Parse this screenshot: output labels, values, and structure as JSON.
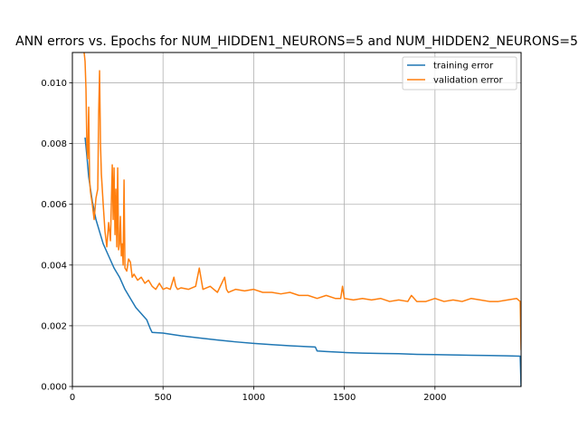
{
  "chart_data": {
    "type": "line",
    "title": "ANN errors vs. Epochs for NUM_HIDDEN1_NEURONS=5 and NUM_HIDDEN2_NEURONS=5",
    "xlabel": "",
    "ylabel": "",
    "xlim": [
      0,
      2475
    ],
    "ylim": [
      0,
      0.011
    ],
    "x_ticks": [
      0,
      500,
      1000,
      1500,
      2000
    ],
    "x_tick_labels": [
      "0",
      "500",
      "1000",
      "1500",
      "2000"
    ],
    "y_ticks": [
      0,
      0.002,
      0.004,
      0.006,
      0.008,
      0.01
    ],
    "y_tick_labels": [
      "0.000",
      "0.002",
      "0.004",
      "0.006",
      "0.008",
      "0.010"
    ],
    "grid": true,
    "legend_position": "top-right",
    "series": [
      {
        "name": "training error",
        "color": "#1f77b4",
        "x": [
          70,
          80,
          90,
          100,
          110,
          120,
          130,
          150,
          170,
          200,
          230,
          260,
          290,
          320,
          350,
          380,
          410,
          430,
          440,
          500,
          600,
          700,
          800,
          900,
          1000,
          1100,
          1200,
          1300,
          1340,
          1350,
          1400,
          1500,
          1600,
          1700,
          1800,
          1900,
          2000,
          2100,
          2200,
          2300,
          2400,
          2470,
          2475
        ],
        "y": [
          0.0082,
          0.0076,
          0.0069,
          0.0065,
          0.0061,
          0.0058,
          0.0055,
          0.0051,
          0.0047,
          0.0043,
          0.0039,
          0.0036,
          0.0032,
          0.0029,
          0.0026,
          0.0024,
          0.0022,
          0.0019,
          0.00178,
          0.00176,
          0.00167,
          0.0016,
          0.00153,
          0.00147,
          0.00142,
          0.00138,
          0.00134,
          0.00131,
          0.0013,
          0.00117,
          0.00115,
          0.00112,
          0.0011,
          0.00109,
          0.00108,
          0.00106,
          0.00105,
          0.00104,
          0.00103,
          0.00102,
          0.00101,
          0.001,
          0.0
        ]
      },
      {
        "name": "validation error",
        "color": "#ff7f0e",
        "x": [
          60,
          65,
          70,
          75,
          80,
          85,
          90,
          95,
          100,
          110,
          120,
          130,
          140,
          145,
          150,
          155,
          160,
          170,
          180,
          190,
          200,
          210,
          220,
          225,
          230,
          235,
          240,
          245,
          250,
          255,
          260,
          265,
          270,
          275,
          280,
          285,
          290,
          300,
          310,
          320,
          330,
          340,
          360,
          380,
          400,
          420,
          440,
          460,
          480,
          500,
          520,
          540,
          560,
          570,
          580,
          600,
          640,
          680,
          700,
          720,
          760,
          800,
          840,
          850,
          860,
          900,
          950,
          1000,
          1050,
          1100,
          1150,
          1200,
          1250,
          1300,
          1350,
          1400,
          1450,
          1480,
          1490,
          1500,
          1550,
          1600,
          1650,
          1700,
          1750,
          1800,
          1850,
          1870,
          1900,
          1950,
          2000,
          2050,
          2100,
          2150,
          2200,
          2250,
          2300,
          2350,
          2400,
          2450,
          2470,
          2475
        ],
        "y": [
          0.011,
          0.011,
          0.0107,
          0.0098,
          0.0079,
          0.0075,
          0.0092,
          0.0068,
          0.0064,
          0.006,
          0.0055,
          0.0062,
          0.0065,
          0.009,
          0.0104,
          0.008,
          0.007,
          0.006,
          0.0051,
          0.0046,
          0.0054,
          0.0048,
          0.0073,
          0.0055,
          0.0072,
          0.005,
          0.0065,
          0.0046,
          0.0072,
          0.0045,
          0.0047,
          0.0056,
          0.0043,
          0.0047,
          0.004,
          0.0068,
          0.0039,
          0.0038,
          0.0042,
          0.0041,
          0.0036,
          0.0037,
          0.0035,
          0.0036,
          0.0034,
          0.0035,
          0.0033,
          0.0032,
          0.0034,
          0.0032,
          0.00325,
          0.0032,
          0.0036,
          0.0033,
          0.0032,
          0.00325,
          0.0032,
          0.0033,
          0.0039,
          0.0032,
          0.0033,
          0.0031,
          0.0036,
          0.0032,
          0.0031,
          0.0032,
          0.00315,
          0.0032,
          0.0031,
          0.0031,
          0.00305,
          0.0031,
          0.003,
          0.003,
          0.0029,
          0.003,
          0.0029,
          0.0029,
          0.0033,
          0.0029,
          0.00285,
          0.0029,
          0.00285,
          0.0029,
          0.0028,
          0.00285,
          0.0028,
          0.003,
          0.0028,
          0.0028,
          0.0029,
          0.0028,
          0.00285,
          0.0028,
          0.0029,
          0.00285,
          0.0028,
          0.0028,
          0.00285,
          0.0029,
          0.0028,
          0.0012
        ]
      }
    ]
  }
}
